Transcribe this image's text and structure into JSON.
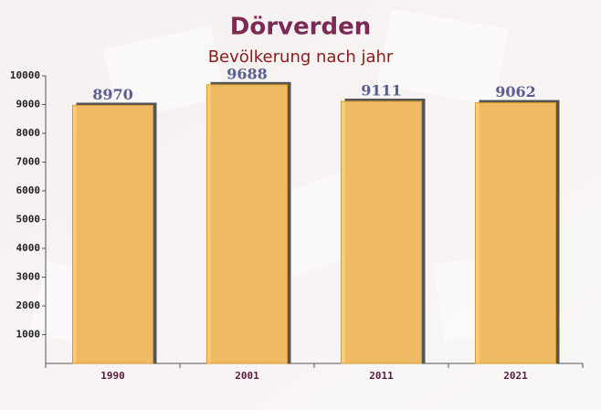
{
  "chart_data": {
    "type": "bar",
    "title": "Dörverden",
    "subtitle": "Bevölkerung nach jahr",
    "categories": [
      "1990",
      "2001",
      "2011",
      "2021"
    ],
    "values": [
      8970,
      9688,
      9111,
      9062
    ],
    "color": "#ffc666",
    "ylim": [
      0,
      10000
    ],
    "yticks": [
      1000,
      2000,
      3000,
      4000,
      5000,
      6000,
      7000,
      8000,
      9000,
      10000
    ],
    "grid": false
  }
}
